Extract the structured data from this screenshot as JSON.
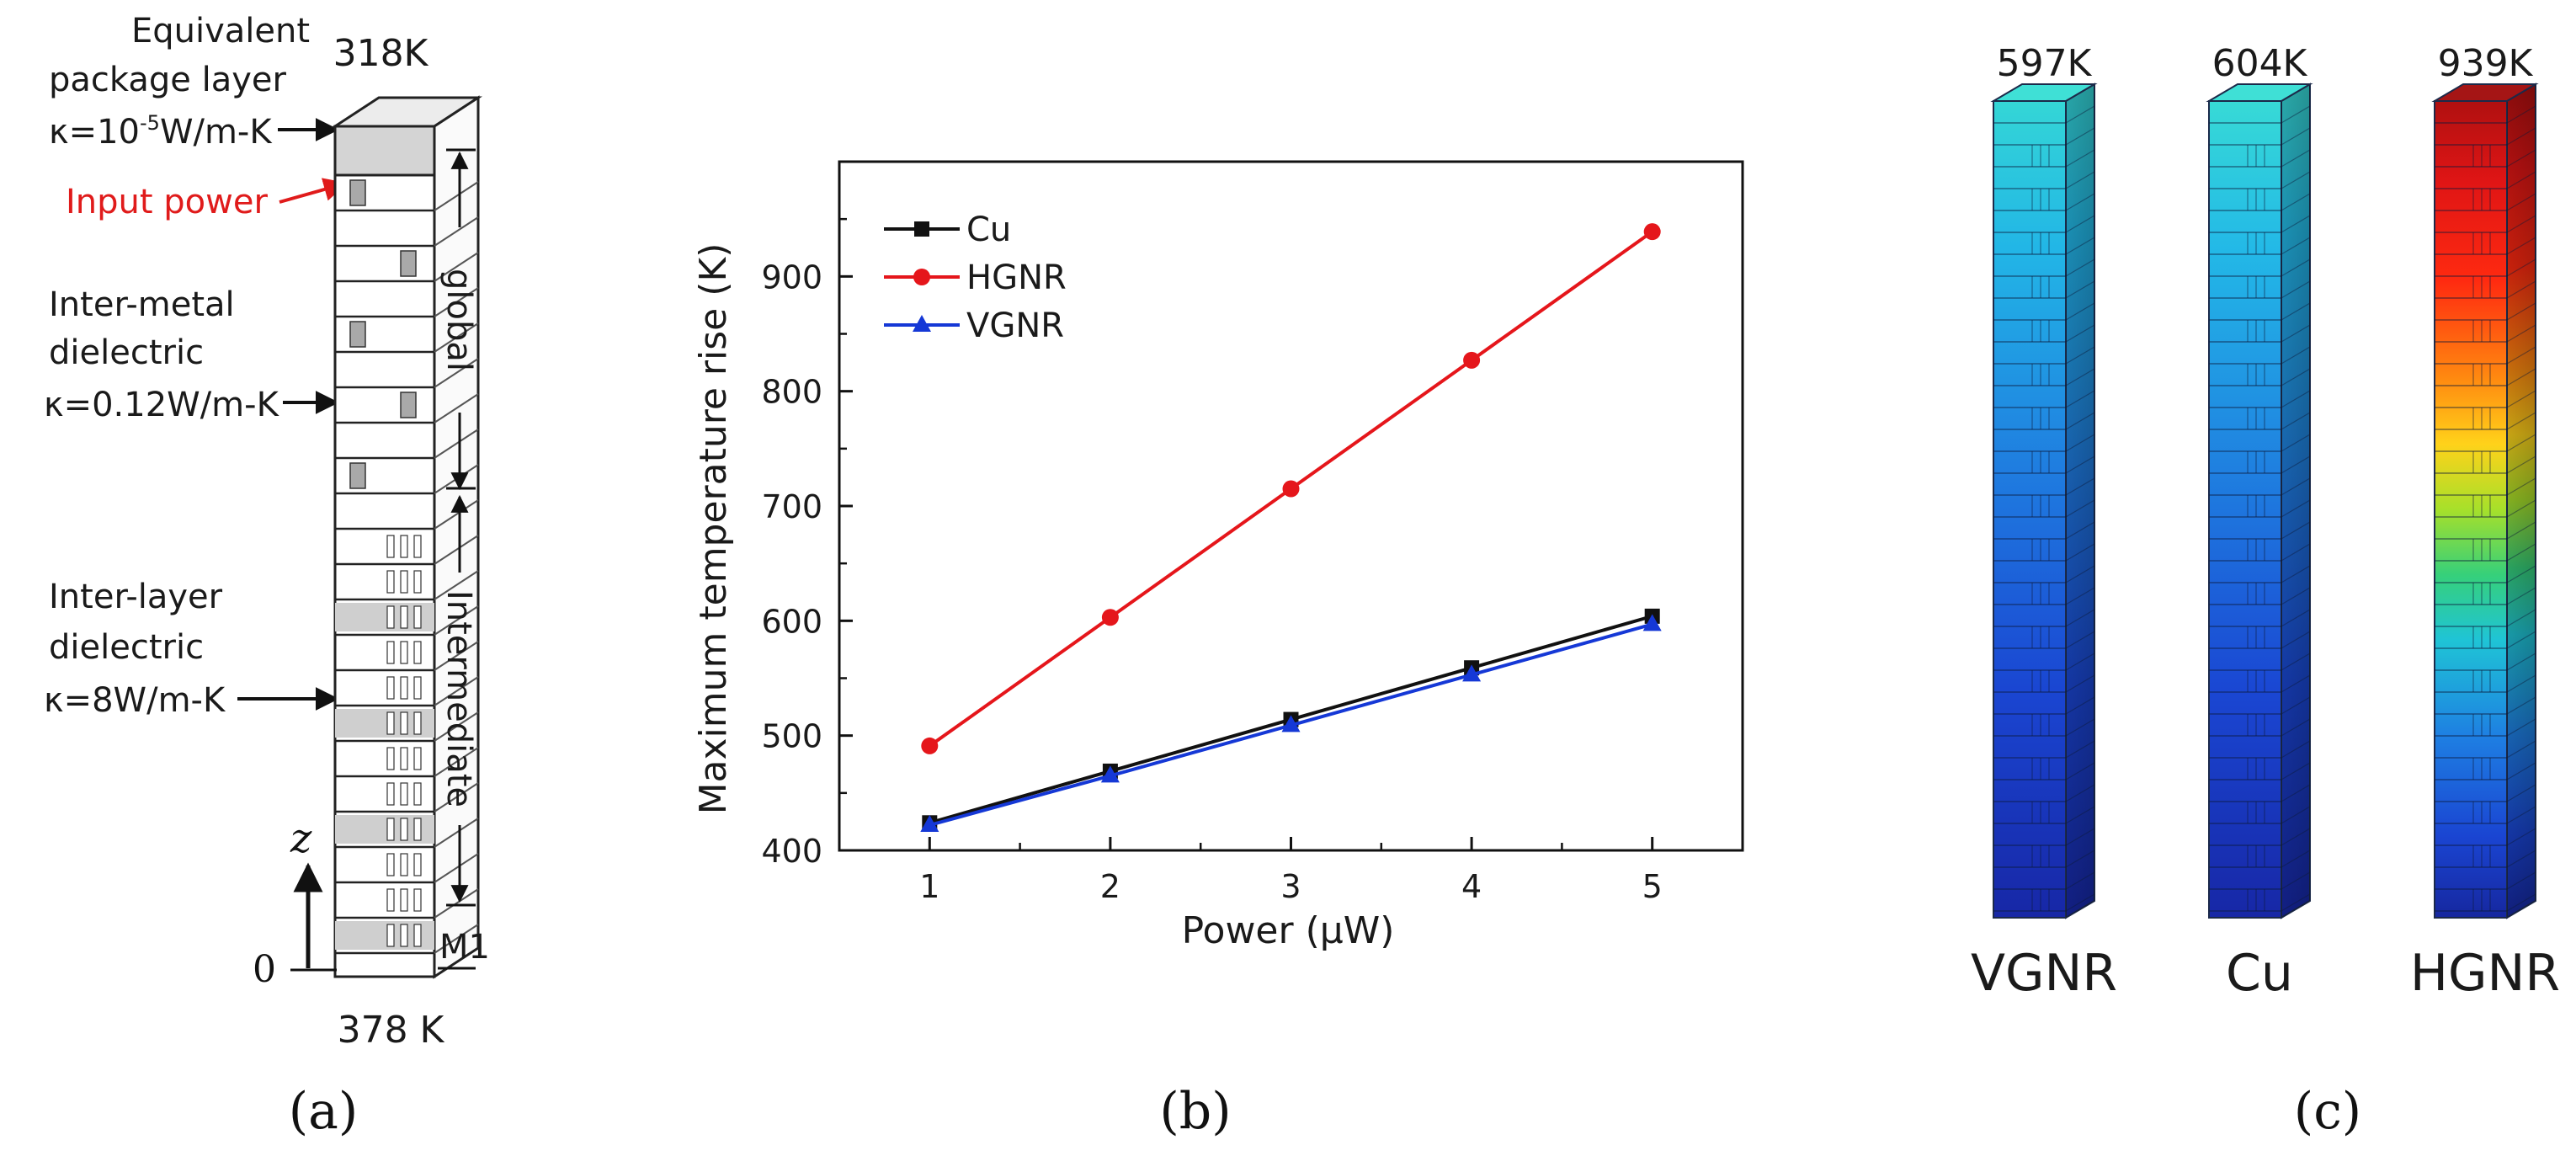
{
  "panel_a": {
    "top_temp": "318K",
    "bottom_temp": "378 K",
    "package_layer": {
      "line1": "Equivalent",
      "line2": "package layer",
      "kappa_prefix": "κ=10",
      "kappa_exp": "-5",
      "kappa_unit": "W/m-K"
    },
    "input_power": "Input power",
    "imd": {
      "line1": "Inter-metal",
      "line2": "dielectric",
      "kappa": "κ=0.12W/m-K"
    },
    "ild": {
      "line1": "Inter-layer",
      "line2": "dielectric",
      "kappa": "κ=8W/m-K"
    },
    "global_label": "global",
    "intermediate_label": "Intermediate",
    "m1_label": "M1",
    "z_label": "z",
    "zero_label": "0",
    "caption": "(a)",
    "colors": {
      "input_power": "#e01b1b",
      "package": "#d4d4d4",
      "via": "#a9a9a9"
    }
  },
  "panel_b": {
    "caption": "(b)",
    "chart_data": {
      "type": "line",
      "title": "",
      "xlabel": "Power (μW)",
      "ylabel": "Maximum temperature rise (K)",
      "x": [
        1,
        2,
        3,
        4,
        5
      ],
      "xlim": [
        0.5,
        5.5
      ],
      "ylim": [
        400,
        1000
      ],
      "xticks": [
        "1",
        "2",
        "3",
        "4",
        "5"
      ],
      "yticks": [
        "400",
        "500",
        "600",
        "700",
        "800",
        "900"
      ],
      "legend_position": "top-left",
      "series": [
        {
          "name": "Cu",
          "values": [
            424,
            469,
            514,
            559,
            604
          ],
          "color": "#111111",
          "marker": "square"
        },
        {
          "name": "HGNR",
          "values": [
            491,
            603,
            715,
            827,
            939
          ],
          "color": "#e5161b",
          "marker": "circle"
        },
        {
          "name": "VGNR",
          "values": [
            422,
            465,
            509,
            553,
            597
          ],
          "color": "#1538d6",
          "marker": "triangle"
        }
      ]
    }
  },
  "panel_c": {
    "caption": "(c)",
    "pillars": [
      {
        "name": "VGNR",
        "temp": "597K"
      },
      {
        "name": "Cu",
        "temp": "604K"
      },
      {
        "name": "HGNR",
        "temp": "939K"
      }
    ]
  }
}
